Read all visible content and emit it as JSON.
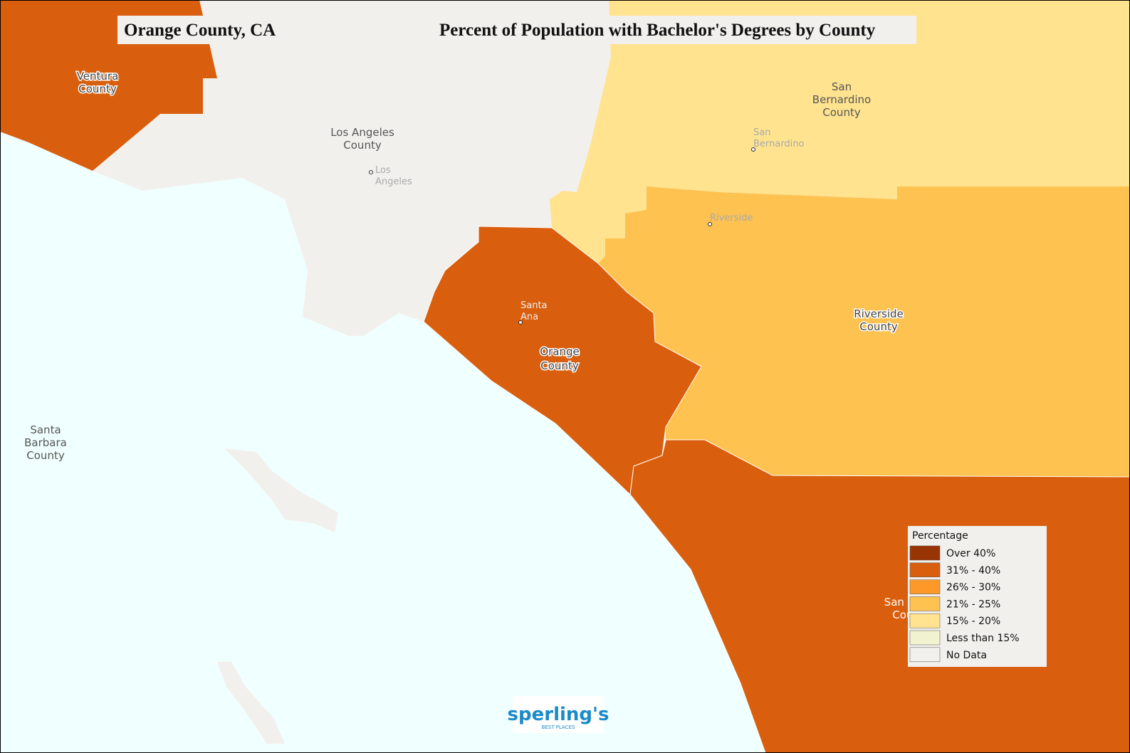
{
  "header": {
    "location": "Orange County, CA",
    "title": "Percent of Population with Bachelor's Degrees by County"
  },
  "counties": [
    {
      "lines": [
        "Ventura",
        "County"
      ],
      "color": "#d95f0e"
    },
    {
      "lines": [
        "Los Angeles",
        "County"
      ],
      "color": "#f2f0ec"
    },
    {
      "lines": [
        "San",
        "Bernardino",
        "County"
      ],
      "color": "#ffe38f"
    },
    {
      "lines": [
        "Riverside",
        "County"
      ],
      "color": "#fec250"
    },
    {
      "lines": [
        "Orange",
        "County"
      ],
      "color": "#d95f0e"
    },
    {
      "lines": [
        "San Diego",
        "County"
      ],
      "color": "#d95f0e"
    },
    {
      "lines": [
        "Santa",
        "Barbara",
        "County"
      ]
    }
  ],
  "cities": [
    {
      "lines": [
        "Los",
        "Angeles"
      ]
    },
    {
      "lines": [
        "San",
        "Bernardino"
      ]
    },
    {
      "lines": [
        "Riverside"
      ]
    },
    {
      "lines": [
        "Santa",
        "Ana"
      ]
    }
  ],
  "legend": {
    "title": "Percentage",
    "items": [
      {
        "label": "Over 40%",
        "color": "#993404"
      },
      {
        "label": "31% - 40%",
        "color": "#d95f0e"
      },
      {
        "label": "26% - 30%",
        "color": "#fe9929"
      },
      {
        "label": "21% - 25%",
        "color": "#fec250"
      },
      {
        "label": "15% - 20%",
        "color": "#ffe38f"
      },
      {
        "label": "Less than 15%",
        "color": "#f0f2d0"
      },
      {
        "label": "No Data",
        "color": "#f2f0ec"
      }
    ]
  },
  "logo": {
    "name": "sperling's",
    "tagline": "BEST PLACES"
  }
}
